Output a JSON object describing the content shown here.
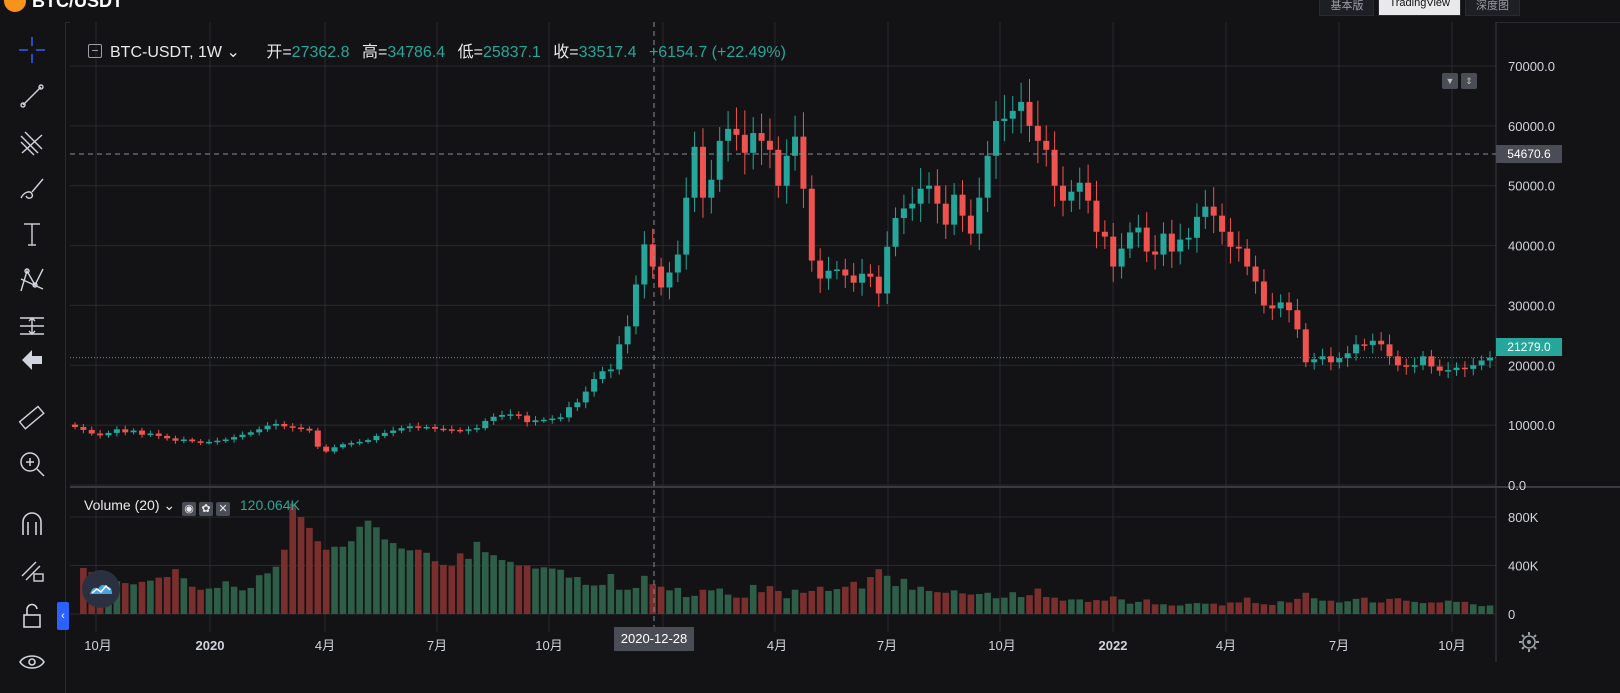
{
  "topbar": {
    "symbol": "BTC/USDT",
    "tabs": [
      "基本版",
      "TradingView",
      "深度图"
    ]
  },
  "legend": {
    "symbol_interval": "BTC-USDT, 1W",
    "open_label": "开=",
    "open": "27362.8",
    "high_label": "高=",
    "high": "34786.4",
    "low_label": "低=",
    "low": "25837.1",
    "close_label": "收=",
    "close": "33517.4",
    "change": "+6154.7 (+22.49%)"
  },
  "volume_legend": {
    "title": "Volume (20)",
    "value": "120.064K"
  },
  "price_axis": {
    "ticks": [
      "70000.0",
      "60000.0",
      "50000.0",
      "40000.0",
      "30000.0",
      "20000.0",
      "10000.0",
      "0.0"
    ],
    "crosshair_label": "54670.6",
    "last_price_label": "21279.0"
  },
  "volume_axis": {
    "ticks": [
      "800K",
      "400K",
      "0"
    ]
  },
  "time_axis": {
    "ticks": [
      "10月",
      "2020",
      "4月",
      "7月",
      "10月",
      "1月",
      "4月",
      "7月",
      "10月",
      "2022",
      "4月",
      "7月",
      "10月"
    ],
    "crosshair_date": "2020-12-28"
  },
  "colors": {
    "up": "#26a69a",
    "down": "#ef5350",
    "background": "#131315",
    "grid": "#2a2a2e"
  },
  "chart_data": {
    "type": "candlestick",
    "interval": "1W",
    "y_range": [
      0,
      70000
    ],
    "volume_range": [
      0,
      900000
    ],
    "price_series": [
      9700,
      9200,
      8600,
      8300,
      8700,
      9300,
      8800,
      9100,
      8400,
      8600,
      8200,
      7800,
      7400,
      7600,
      7300,
      7100,
      7200,
      7400,
      7600,
      8000,
      8400,
      8800,
      9300,
      9900,
      10200,
      9800,
      9600,
      9400,
      9100,
      6400,
      5600,
      6300,
      6800,
      7000,
      7200,
      7500,
      8200,
      8700,
      9100,
      9500,
      9800,
      9600,
      9700,
      9400,
      9300,
      9200,
      9100,
      9300,
      9500,
      10700,
      11400,
      11700,
      11800,
      11600,
      10500,
      10800,
      10900,
      11100,
      11300,
      13000,
      13800,
      15600,
      17700,
      19000,
      19300,
      23500,
      26500,
      33500,
      40200,
      36500,
      33000,
      35500,
      38500,
      48000,
      56500,
      48000,
      51000,
      57500,
      59500,
      58500,
      55500,
      58800,
      57500,
      56000,
      50000,
      55000,
      58200,
      49500,
      37500,
      34500,
      35800,
      36000,
      35000,
      33800,
      35300,
      34800,
      32000,
      39800,
      44600,
      46200,
      47000,
      49500,
      50000,
      47000,
      43500,
      48500,
      45000,
      42000,
      48000,
      55000,
      60800,
      61200,
      62500,
      64000,
      60000,
      57500,
      56000,
      50000,
      47500,
      49000,
      50500,
      47500,
      42300,
      41500,
      36500,
      39500,
      42200,
      43000,
      39000,
      38500,
      42000,
      39000,
      41000,
      41300,
      44800,
      46500,
      45000,
      42300,
      39800,
      39500,
      36500,
      34000,
      30000,
      29500,
      30500,
      29200,
      26000,
      20500,
      21000,
      21500,
      20500,
      21200,
      22000,
      23500,
      23400,
      24100,
      23500,
      21500,
      20000,
      19800,
      20000,
      21500,
      19800,
      19100,
      19200,
      19600,
      19400,
      20000,
      20800,
      21279
    ],
    "volume_series_k": [
      1,
      380,
      345,
      330,
      295,
      270,
      255,
      245,
      265,
      275,
      300,
      305,
      370,
      295,
      225,
      200,
      210,
      215,
      270,
      225,
      195,
      215,
      320,
      335,
      390,
      530,
      910,
      800,
      710,
      600,
      530,
      555,
      555,
      600,
      720,
      770,
      715,
      615,
      585,
      540,
      525,
      530,
      505,
      435,
      405,
      395,
      500,
      455,
      595,
      510,
      485,
      445,
      430,
      400,
      400,
      375,
      385,
      375,
      365,
      300,
      305,
      240,
      235,
      240,
      330,
      200,
      200,
      215,
      315,
      245,
      225,
      195,
      215,
      140,
      150,
      200,
      195,
      210,
      160,
      135,
      135,
      240,
      180,
      230,
      190,
      130,
      200,
      175,
      190,
      225,
      190,
      205,
      225,
      265,
      210,
      305,
      370,
      315,
      230,
      290,
      200,
      225,
      190,
      180,
      175,
      195,
      170,
      160,
      165,
      175,
      130,
      135,
      180,
      140,
      155,
      210,
      140,
      135,
      110,
      120,
      120,
      100,
      115,
      110,
      145,
      120,
      85,
      100,
      120,
      80,
      80,
      70,
      70,
      85,
      90,
      85,
      85,
      70,
      95,
      95,
      135,
      90,
      80,
      75,
      105,
      95,
      125,
      175,
      130,
      110,
      110,
      95,
      105,
      125,
      135,
      95,
      95,
      125,
      130,
      110,
      100,
      90,
      95,
      95,
      110,
      100,
      100,
      80,
      65,
      70
    ]
  }
}
